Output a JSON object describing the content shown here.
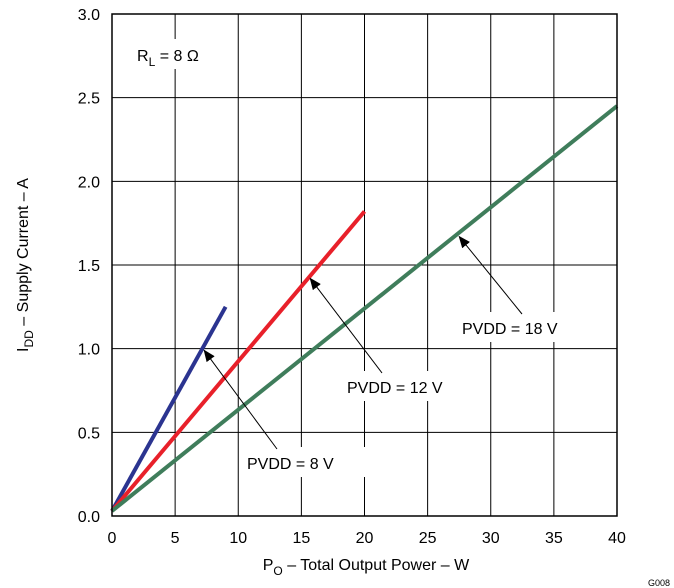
{
  "chart_data": {
    "type": "line",
    "xlabel": {
      "main": "P",
      "sub": "O",
      "rest": " – Total Output Power – W"
    },
    "ylabel": {
      "main": "I",
      "sub": "DD",
      "rest": " – Supply Current – A"
    },
    "xlim": [
      0,
      40
    ],
    "ylim": [
      0,
      3.0
    ],
    "xticks": [
      "0",
      "5",
      "10",
      "15",
      "20",
      "25",
      "30",
      "35",
      "40"
    ],
    "yticks": [
      "0.0",
      "0.5",
      "1.0",
      "1.5",
      "2.0",
      "2.5",
      "3.0"
    ],
    "grid": true,
    "series": [
      {
        "name": "PVDD = 8 V",
        "color": "#2b3490",
        "x": [
          0,
          9.0
        ],
        "y": [
          0.03,
          1.25
        ]
      },
      {
        "name": "PVDD = 12 V",
        "color": "#e8202a",
        "x": [
          0,
          20.0
        ],
        "y": [
          0.03,
          1.82
        ]
      },
      {
        "name": "PVDD = 18 V",
        "color": "#3f7d5b",
        "x": [
          0,
          40.0
        ],
        "y": [
          0.03,
          2.45
        ]
      }
    ],
    "annotations": [
      {
        "text_main": "R",
        "text_sub": "L",
        "text_rest": " = 8 Ω"
      },
      {
        "text": "PVDD = 18 V",
        "target": [
          27.5,
          1.67
        ]
      },
      {
        "text": "PVDD = 12 V",
        "target": [
          15.7,
          1.42
        ]
      },
      {
        "text": "PVDD = 8 V",
        "target": [
          7.3,
          0.99
        ]
      }
    ],
    "figure_id": "G008"
  }
}
